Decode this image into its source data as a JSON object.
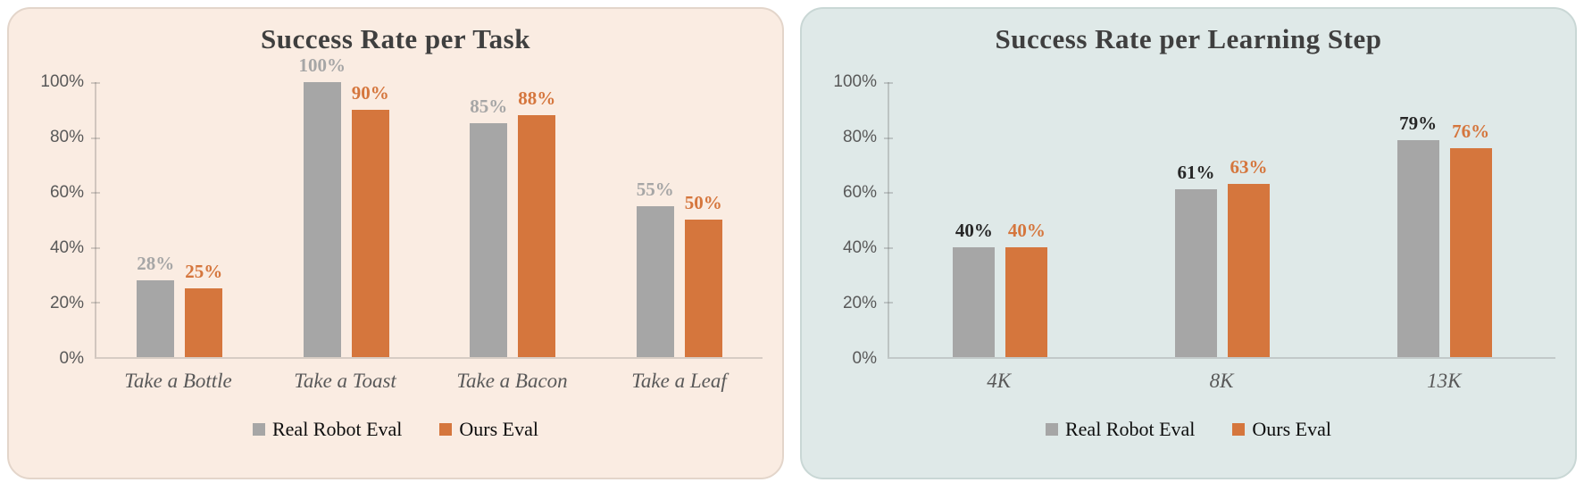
{
  "page": {
    "background": "#FFFFFF"
  },
  "shared": {
    "y_tick_labels": [
      "0%",
      "20%",
      "40%",
      "60%",
      "80%",
      "100%"
    ],
    "legend": [
      "Real Robot Eval",
      "Ours Eval"
    ],
    "series_colors": {
      "real_robot_eval": "#A6A6A6",
      "ours_eval": "#D5763D"
    },
    "axis_text_color": "#595959",
    "title_color": "#3F3F3F"
  },
  "chart_data": [
    {
      "type": "bar",
      "title": "Success Rate per Task",
      "categories": [
        "Take a Bottle",
        "Take a Toast",
        "Take a Bacon",
        "Take a Leaf"
      ],
      "series": [
        {
          "name": "Real Robot Eval",
          "color": "#A6A6A6",
          "label_color": "#A6A6A6",
          "values": [
            28,
            100,
            85,
            55
          ]
        },
        {
          "name": "Ours Eval",
          "color": "#D5763D",
          "label_color": "#D5763D",
          "values": [
            25,
            90,
            88,
            50
          ]
        }
      ],
      "xlabel": "",
      "ylabel": "",
      "ylim": [
        0,
        100
      ],
      "y_ticks": [
        0,
        20,
        40,
        60,
        80,
        100
      ],
      "value_suffix": "%",
      "grid": false,
      "legend_position": "bottom",
      "panel_background": "#FAECE2",
      "panel_border": "#E3D5CA"
    },
    {
      "type": "bar",
      "title": "Success Rate per Learning Step",
      "categories": [
        "4K",
        "8K",
        "13K"
      ],
      "series": [
        {
          "name": "Real Robot Eval",
          "color": "#A6A6A6",
          "label_color": "#262626",
          "values": [
            40,
            61,
            79
          ]
        },
        {
          "name": "Ours Eval",
          "color": "#D5763D",
          "label_color": "#D5763D",
          "values": [
            40,
            63,
            76
          ]
        }
      ],
      "xlabel": "",
      "ylabel": "",
      "ylim": [
        0,
        100
      ],
      "y_ticks": [
        0,
        20,
        40,
        60,
        80,
        100
      ],
      "value_suffix": "%",
      "grid": false,
      "legend_position": "bottom",
      "panel_background": "#DFE9E8",
      "panel_border": "#C9D7D5"
    }
  ]
}
